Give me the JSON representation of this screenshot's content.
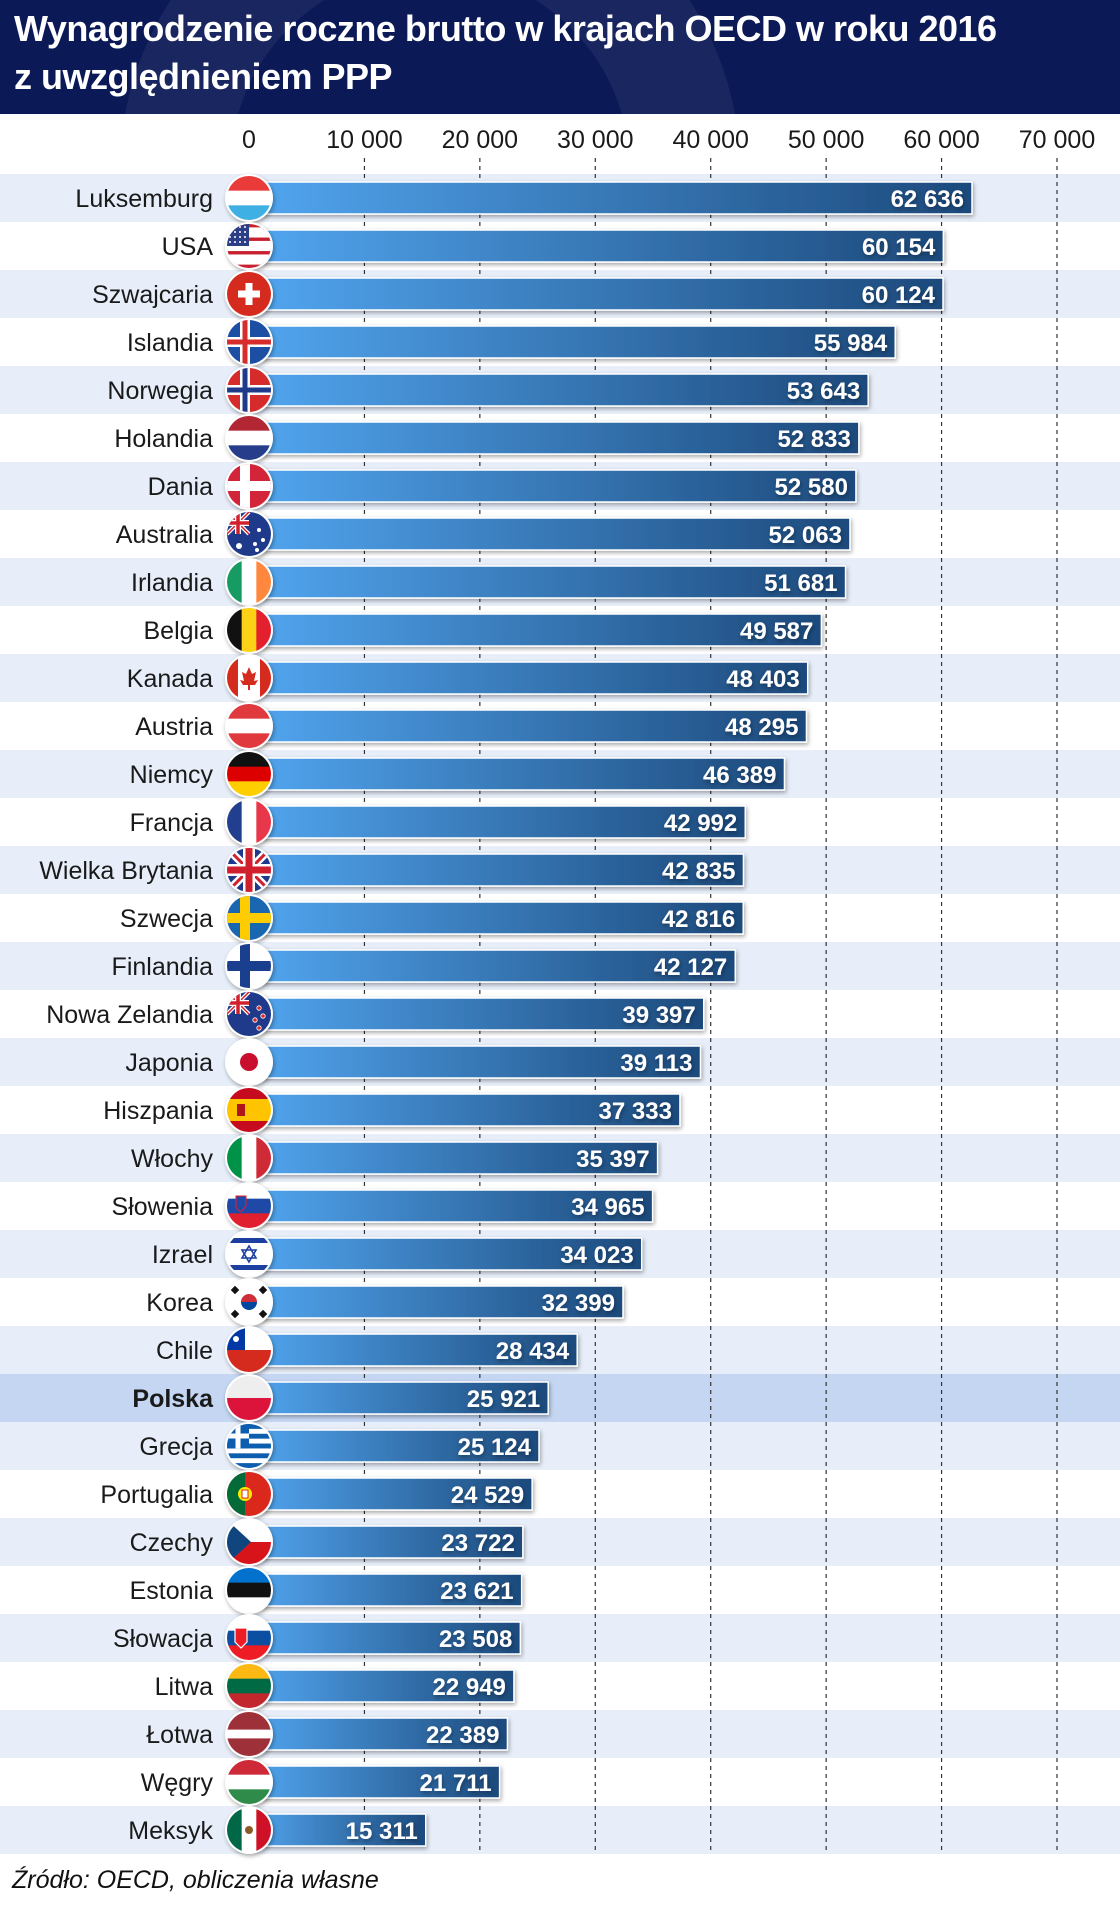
{
  "header": {
    "title_line1": "Wynagrodzenie roczne brutto w krajach OECD w roku 2016",
    "title_line2": "z uwzględnieniem PPP"
  },
  "source": "Źródło: OECD, obliczenia własne",
  "colors": {
    "header_bg": "#0c1957",
    "bar_light": "#52a6f0",
    "bar_dark": "#1d4a7c",
    "row_alt": "#e7eef9",
    "highlight_row": "#c4d6f2",
    "highlight_label": "#3d74d6"
  },
  "chart_data": {
    "type": "bar",
    "orientation": "horizontal",
    "title": "Wynagrodzenie roczne brutto w krajach OECD w roku 2016 z uwzględnieniem PPP",
    "xlim": [
      0,
      70000
    ],
    "x_ticks": [
      0,
      10000,
      20000,
      30000,
      40000,
      50000,
      60000,
      70000
    ],
    "x_tick_labels": [
      "0",
      "10 000",
      "20 000",
      "30 000",
      "40 000",
      "50 000",
      "60 000",
      "70 000"
    ],
    "grid": "vertical dashed",
    "highlighted": "Polska",
    "categories": [
      "Luksemburg",
      "USA",
      "Szwajcaria",
      "Islandia",
      "Norwegia",
      "Holandia",
      "Dania",
      "Australia",
      "Irlandia",
      "Belgia",
      "Kanada",
      "Austria",
      "Niemcy",
      "Francja",
      "Wielka Brytania",
      "Szwecja",
      "Finlandia",
      "Nowa Zelandia",
      "Japonia",
      "Hiszpania",
      "Włochy",
      "Słowenia",
      "Izrael",
      "Korea",
      "Chile",
      "Polska",
      "Grecja",
      "Portugalia",
      "Czechy",
      "Estonia",
      "Słowacja",
      "Litwa",
      "Łotwa",
      "Węgry",
      "Meksyk"
    ],
    "values": [
      62636,
      60154,
      60124,
      55984,
      53643,
      52833,
      52580,
      52063,
      51681,
      49587,
      48403,
      48295,
      46389,
      42992,
      42835,
      42816,
      42127,
      39397,
      39113,
      37333,
      35397,
      34965,
      34023,
      32399,
      28434,
      25921,
      25124,
      24529,
      23722,
      23621,
      23508,
      22949,
      22389,
      21711,
      15311
    ],
    "value_labels": [
      "62 636",
      "60 154",
      "60 124",
      "55 984",
      "53 643",
      "52 833",
      "52 580",
      "52 063",
      "51 681",
      "49 587",
      "48 403",
      "48 295",
      "46 389",
      "42 992",
      "42 835",
      "42 816",
      "42 127",
      "39 397",
      "39 113",
      "37 333",
      "35 397",
      "34 965",
      "34 023",
      "32 399",
      "28 434",
      "25 921",
      "25 124",
      "24 529",
      "23 722",
      "23 621",
      "23 508",
      "22 949",
      "22 389",
      "21 711",
      "15 311"
    ],
    "flag_icons": [
      "lu",
      "us",
      "ch",
      "is",
      "no",
      "nl",
      "dk",
      "au",
      "ie",
      "be",
      "ca",
      "at",
      "de",
      "fr",
      "gb",
      "se",
      "fi",
      "nz",
      "jp",
      "es",
      "it",
      "si",
      "il",
      "kr",
      "cl",
      "pl",
      "gr",
      "pt",
      "cz",
      "ee",
      "sk",
      "lt",
      "lv",
      "hu",
      "mx"
    ]
  }
}
